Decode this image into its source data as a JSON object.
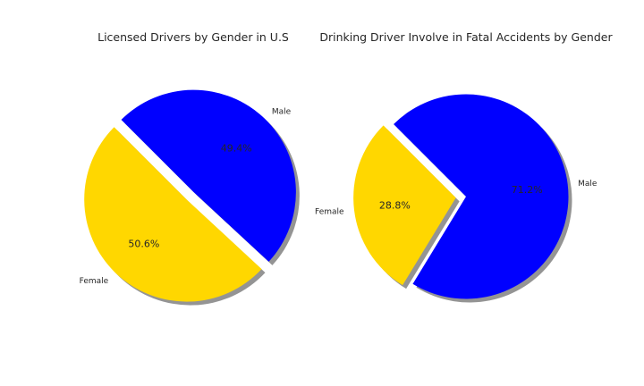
{
  "chart_data": [
    {
      "type": "pie",
      "title": "Licensed Drivers by Gender in U.S",
      "categories": [
        "Female",
        "Male"
      ],
      "values": [
        50.6,
        49.4
      ],
      "value_labels": [
        "50.6%",
        "49.4%"
      ],
      "colors": [
        "#FFD700",
        "#0000FF"
      ],
      "explode": [
        0.1,
        0
      ],
      "start_angle_deg": 135,
      "shadow": true
    },
    {
      "type": "pie",
      "title": "Drinking Driver Involve in Fatal Accidents by Gender",
      "categories": [
        "Female",
        "Male"
      ],
      "values": [
        28.8,
        71.2
      ],
      "value_labels": [
        "28.8%",
        "71.2%"
      ],
      "colors": [
        "#FFD700",
        "#0000FF"
      ],
      "explode": [
        0.1,
        0
      ],
      "start_angle_deg": 135,
      "shadow": true
    }
  ]
}
